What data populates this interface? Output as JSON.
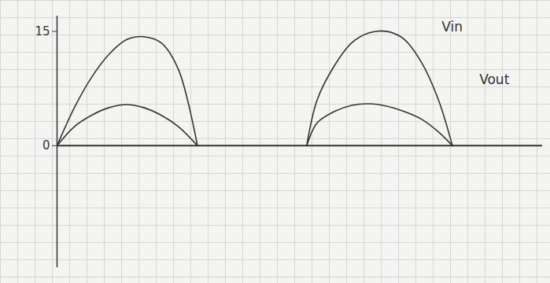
{
  "chart_data": {
    "type": "line",
    "x": [
      0,
      1,
      2,
      3,
      4,
      5,
      6,
      7,
      8.1,
      11,
      14.4,
      15,
      16,
      17,
      18,
      19,
      20,
      21,
      22,
      22.8
    ],
    "series": [
      {
        "name": "Vin",
        "color": "#333333",
        "values": [
          0,
          5,
          9,
          12,
          13.9,
          14.3,
          13.5,
          10,
          0,
          null,
          0,
          6,
          10.5,
          13.5,
          14.8,
          15,
          14,
          11,
          6,
          0
        ]
      },
      {
        "name": "Vout",
        "color": "#333333",
        "values": [
          0,
          2.5,
          4,
          5,
          5.4,
          5,
          4,
          2.5,
          0,
          null,
          0,
          3,
          4.5,
          5.3,
          5.5,
          5.2,
          4.5,
          3.5,
          1.8,
          0
        ]
      }
    ],
    "xlim": [
      0,
      28
    ],
    "ylim": [
      -16,
      17
    ],
    "yticks": [
      0,
      15
    ],
    "tick_labels": "y"
  }
}
